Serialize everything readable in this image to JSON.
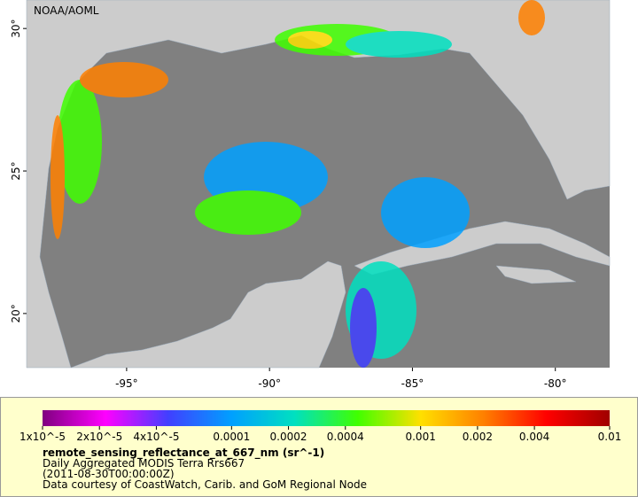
{
  "map": {
    "credit": "NOAA/AOML",
    "xlim": [
      -98.5,
      -78.1
    ],
    "ylim": [
      18.1,
      31.0
    ],
    "lat_ticks": [
      {
        "value": 30,
        "label": "30°"
      },
      {
        "value": 25,
        "label": "25°"
      },
      {
        "value": 20,
        "label": "20°"
      }
    ],
    "lon_ticks": [
      {
        "value": -95,
        "label": "-95°"
      },
      {
        "value": -90,
        "label": "-90°"
      },
      {
        "value": -85,
        "label": "-85°"
      },
      {
        "value": -80,
        "label": "-80°"
      }
    ]
  },
  "colorbar": {
    "log_scale": true,
    "lim": [
      1e-05,
      0.01
    ],
    "colors": [
      "#800080",
      "#ff00ff",
      "#4040ff",
      "#00a0ff",
      "#00e0c0",
      "#40ff00",
      "#ffe000",
      "#ff8000",
      "#ff0000",
      "#a00000"
    ],
    "ticks": [
      {
        "value": 1e-05,
        "label": "1x10^-5"
      },
      {
        "value": 2e-05,
        "label": "2x10^-5"
      },
      {
        "value": 4e-05,
        "label": "4x10^-5"
      },
      0.0001,
      0.0002,
      0.0004,
      0.001,
      0.002,
      0.004,
      0.01
    ]
  },
  "legend": {
    "variable": "remote_sensing_reflectance_at_667_nm (sr^-1)",
    "dataset": "Daily Aggregated MODIS Terra Rrs667",
    "time": "(2011-08-30T00:00:00Z)",
    "source": "Data courtesy of CoastWatch, Carib. and GoM Regional Node"
  }
}
